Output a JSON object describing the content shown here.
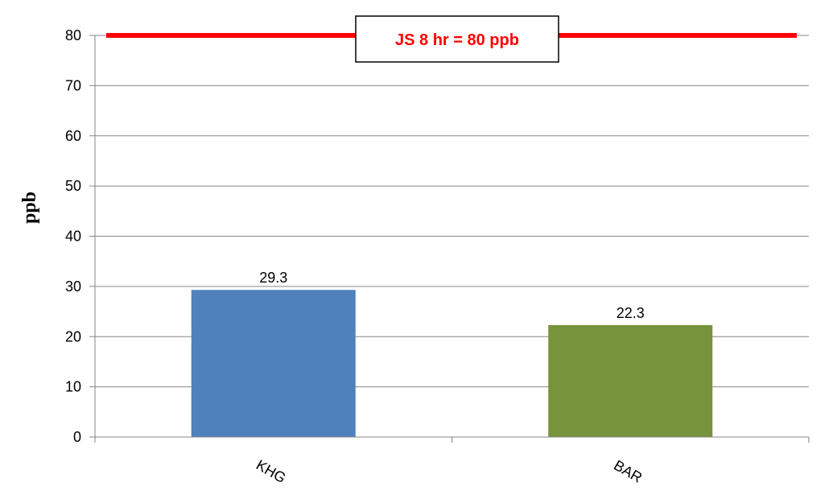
{
  "chart_data": {
    "type": "bar",
    "categories": [
      "KHG",
      "BAR"
    ],
    "values": [
      29.3,
      22.3
    ],
    "data_labels": [
      "29.3",
      "22.3"
    ],
    "bar_colors": [
      "#4F81BD",
      "#77933C"
    ],
    "title": "",
    "xlabel": "",
    "ylabel": "ppb",
    "ylim": [
      0,
      80
    ],
    "yticks": [
      0,
      10,
      20,
      30,
      40,
      50,
      60,
      70,
      80
    ],
    "grid": true,
    "legend": "none",
    "reference_line": {
      "value": 80,
      "label": "JS 8 hr = 80 ppb",
      "color": "#FF0000"
    }
  }
}
